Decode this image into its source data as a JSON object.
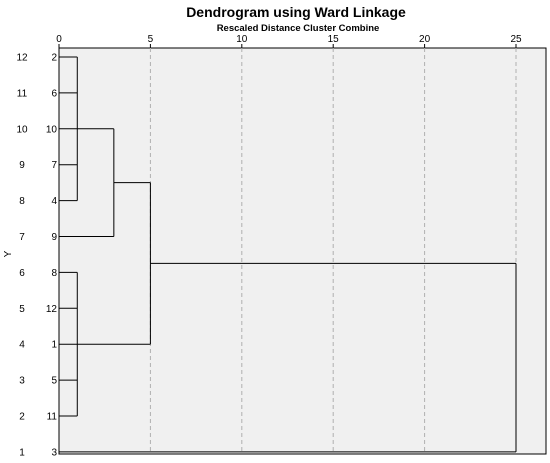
{
  "chart_data": {
    "type": "dendrogram",
    "title": "Dendrogram using Ward Linkage",
    "subtitle": "Rescaled Distance Cluster Combine",
    "xlabel": "Rescaled Distance Cluster Combine",
    "ylabel": "Y",
    "x_ticks": [
      0,
      5,
      10,
      15,
      20,
      25
    ],
    "xlim": [
      0,
      25
    ],
    "grid": true,
    "leaves": [
      "2",
      "6",
      "10",
      "7",
      "4",
      "9",
      "8",
      "12",
      "1",
      "5",
      "11",
      "3"
    ],
    "row_numbers": [
      "12",
      "11",
      "10",
      "9",
      "8",
      "7",
      "6",
      "5",
      "4",
      "3",
      "2",
      "1"
    ],
    "merges": [
      {
        "id": "A",
        "children": [
          "2",
          "6",
          "10",
          "7",
          "4"
        ],
        "height": 1
      },
      {
        "id": "B",
        "children": [
          "A",
          "9"
        ],
        "height": 3
      },
      {
        "id": "C",
        "children": [
          "8",
          "12",
          "1",
          "5",
          "11"
        ],
        "height": 1
      },
      {
        "id": "D",
        "children": [
          "B",
          "C"
        ],
        "height": 5
      },
      {
        "id": "E",
        "children": [
          "D",
          "3"
        ],
        "height": 25
      }
    ]
  }
}
